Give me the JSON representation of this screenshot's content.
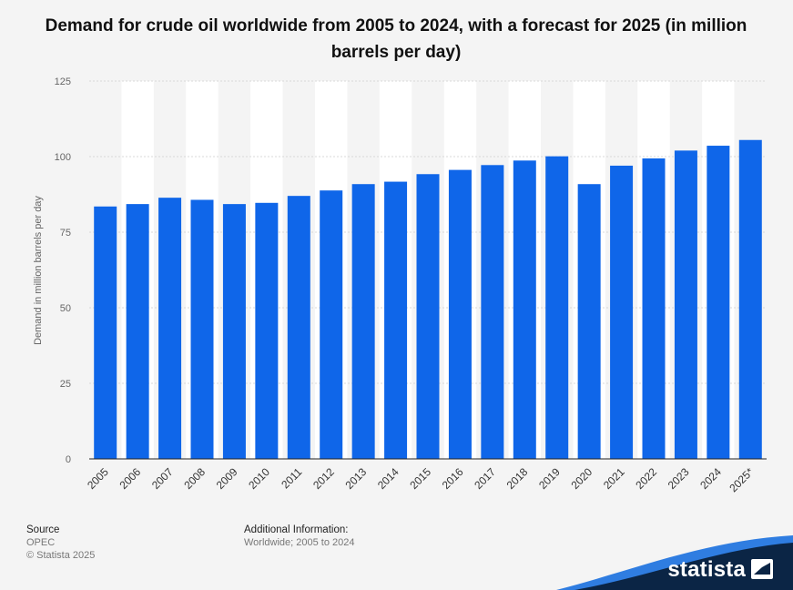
{
  "chart_data": {
    "type": "bar",
    "title": "Demand for crude oil worldwide from 2005 to 2024, with a forecast for 2025 (in million barrels per day)",
    "xlabel": "",
    "ylabel": "Demand in million barrels per day",
    "categories": [
      "2005",
      "2006",
      "2007",
      "2008",
      "2009",
      "2010",
      "2011",
      "2012",
      "2013",
      "2014",
      "2015",
      "2016",
      "2017",
      "2018",
      "2019",
      "2020",
      "2021",
      "2022",
      "2023",
      "2024",
      "2025*"
    ],
    "values": [
      83.5,
      84.3,
      86.4,
      85.7,
      84.3,
      84.7,
      87.0,
      88.8,
      90.9,
      91.7,
      94.2,
      95.6,
      97.2,
      98.7,
      100.1,
      90.9,
      97.0,
      99.4,
      102.0,
      103.6,
      105.5
    ],
    "ylim": [
      0,
      125
    ],
    "yticks": [
      0,
      25,
      50,
      75,
      100,
      125
    ],
    "grid": true,
    "bar_color": "#0f66e9"
  },
  "footer": {
    "source_heading": "Source",
    "source_value": "OPEC",
    "copyright": "© Statista 2025",
    "additional_heading": "Additional Information:",
    "additional_value": "Worldwide; 2005 to 2024"
  },
  "brand": {
    "name": "statista",
    "color_dark": "#0b2545",
    "color_accent": "#2f7de1"
  }
}
